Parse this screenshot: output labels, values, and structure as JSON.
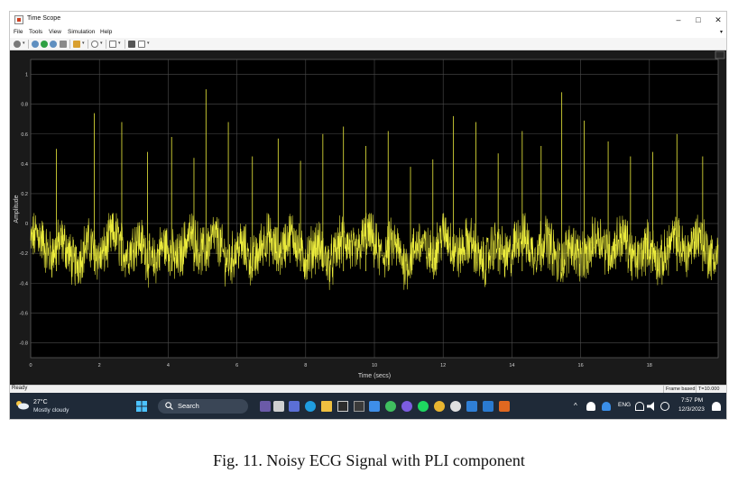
{
  "window": {
    "title": "Time Scope",
    "minimize_glyph": "–",
    "maximize_glyph": "□",
    "close_glyph": "✕"
  },
  "menu": {
    "items": [
      "File",
      "Tools",
      "View",
      "Simulation",
      "Help"
    ],
    "more_glyph": "▾"
  },
  "toolbar": {
    "icons": [
      "settings-icon",
      "step-back-icon",
      "run-icon",
      "step-forward-icon",
      "stop-icon",
      "highlight-icon",
      "zoom-icon",
      "scale-axes-icon",
      "cursor-measure-icon",
      "style-icon"
    ]
  },
  "scope": {
    "background": "#1a1a1a",
    "trace_color": "#ecec3c",
    "grid_color": "#4d4d4d",
    "tick_color": "#cfcfcf"
  },
  "chart_data": {
    "type": "line",
    "xlabel": "Time (secs)",
    "ylabel": "Amplitude",
    "xlim": [
      0,
      20
    ],
    "ylim": [
      -0.9,
      1.1
    ],
    "x_ticks": [
      0,
      2,
      4,
      6,
      8,
      10,
      12,
      14,
      16,
      18
    ],
    "y_ticks": [
      -0.8,
      -0.6,
      -0.4,
      -0.2,
      0,
      0.2,
      0.4,
      0.6,
      0.8,
      1
    ],
    "x_tick_labels": [
      "0",
      "2",
      "4",
      "6",
      "8",
      "10",
      "12",
      "14",
      "16",
      "18"
    ],
    "y_tick_labels": [
      "-0.8",
      "-0.6",
      "-0.4",
      "-0.2",
      "0",
      "0.2",
      "0.4",
      "0.6",
      "0.8",
      "1"
    ],
    "grid": true,
    "series": [
      {
        "peaks_t": [
          0.0,
          0.75,
          1.85,
          2.65,
          3.4,
          4.1,
          4.75,
          5.1,
          5.75,
          6.45,
          7.2,
          7.85,
          8.5,
          9.1,
          9.75,
          10.4,
          11.05,
          11.7,
          12.3,
          12.95,
          13.6,
          14.3,
          14.85,
          15.45,
          16.1,
          16.8,
          17.45,
          18.1,
          18.8,
          19.55
        ],
        "peaks_amp": [
          0.0,
          0.5,
          0.74,
          0.68,
          0.48,
          0.58,
          0.44,
          0.9,
          0.68,
          0.45,
          0.57,
          0.42,
          0.6,
          0.65,
          0.52,
          0.62,
          0.38,
          0.43,
          0.72,
          0.68,
          0.47,
          0.62,
          0.52,
          0.88,
          0.69,
          0.55,
          0.45,
          0.48,
          0.6,
          0.45
        ],
        "baseline_mean": -0.17,
        "noise_range": [
          -0.5,
          0.07
        ]
      }
    ]
  },
  "status": {
    "text": "Ready",
    "frame_based": "Frame based",
    "time": "T=10.000"
  },
  "taskbar": {
    "weather_temp": "27°C",
    "weather_cond": "Mostly cloudy",
    "search_label": "Search",
    "language": "ENG",
    "time": "7:57 PM",
    "date": "12/3/2023"
  },
  "caption": "Fig. 11.  Noisy ECG Signal with PLI component"
}
